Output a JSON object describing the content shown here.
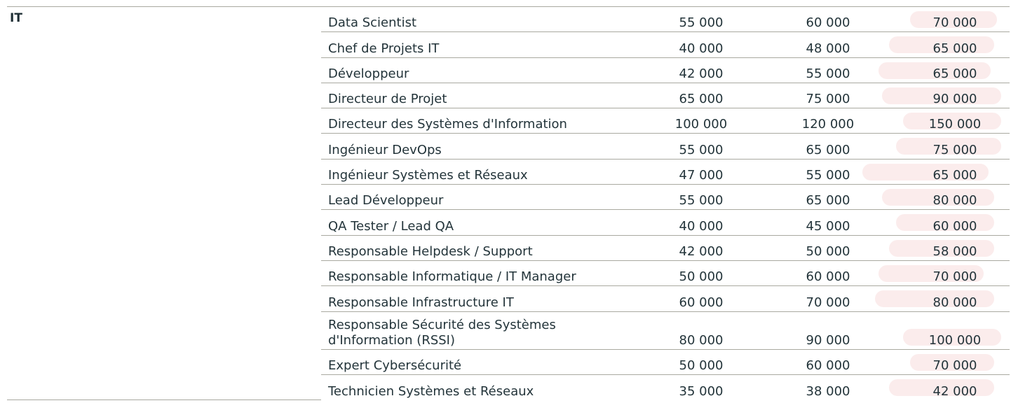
{
  "section": "IT",
  "rows": [
    {
      "job": "Data Scientist",
      "v1": "55 000",
      "v2": "60 000",
      "v3": "70 000"
    },
    {
      "job": "Chef de Projets IT",
      "v1": "40 000",
      "v2": "48 000",
      "v3": "65 000"
    },
    {
      "job": "Développeur",
      "v1": "42 000",
      "v2": "55 000",
      "v3": "65 000"
    },
    {
      "job": "Directeur de Projet",
      "v1": "65 000",
      "v2": "75 000",
      "v3": "90 000"
    },
    {
      "job": "Directeur des Systèmes d'Information",
      "v1": "100 000",
      "v2": "120 000",
      "v3": "150 000"
    },
    {
      "job": "Ingénieur DevOps",
      "v1": "55 000",
      "v2": "65 000",
      "v3": "75 000"
    },
    {
      "job": "Ingénieur Systèmes et Réseaux",
      "v1": "47 000",
      "v2": "55 000",
      "v3": "65 000"
    },
    {
      "job": "Lead Développeur",
      "v1": "55 000",
      "v2": "65 000",
      "v3": "80 000"
    },
    {
      "job": "QA Tester / Lead QA",
      "v1": "40 000",
      "v2": "45 000",
      "v3": "60 000"
    },
    {
      "job": "Responsable Helpdesk / Support",
      "v1": "42 000",
      "v2": "50 000",
      "v3": "58 000"
    },
    {
      "job": "Responsable Informatique / IT Manager",
      "v1": "50 000",
      "v2": "60 000",
      "v3": "70 000"
    },
    {
      "job": "Responsable Infrastructure IT",
      "v1": "60 000",
      "v2": "70 000",
      "v3": "80 000"
    },
    {
      "job": "Responsable Sécurité des Systèmes d'Information (RSSI)",
      "v1": "80 000",
      "v2": "90 000",
      "v3": "100 000"
    },
    {
      "job": "Expert Cybersécurité",
      "v1": "50 000",
      "v2": "60 000",
      "v3": "70 000"
    },
    {
      "job": "Technicien Systèmes et Réseaux",
      "v1": "35 000",
      "v2": "38 000",
      "v3": "42 000"
    }
  ]
}
